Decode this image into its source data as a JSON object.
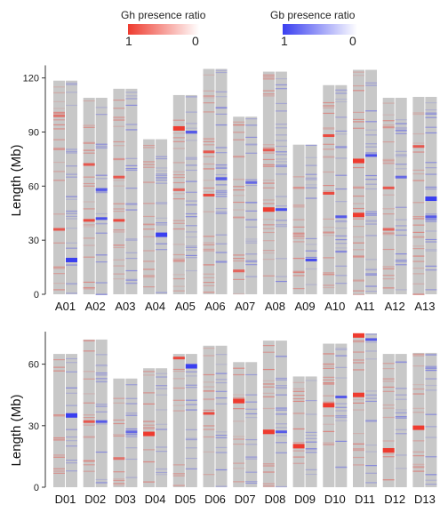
{
  "legend": {
    "gh_title": "Gh presence ratio",
    "gb_title": "Gb presence ratio",
    "gh_high": "1",
    "gh_low": "0",
    "gb_high": "1",
    "gb_low": "0",
    "gh_color": "#ee3b2f",
    "gb_color": "#3a3ff0",
    "background_color": "#c8c8c8"
  },
  "chart_data": [
    {
      "type": "heatmap",
      "ylabel": "Length (Mb)",
      "ylim": [
        0,
        126
      ],
      "yticks": [
        0,
        30,
        60,
        90,
        120
      ],
      "categories": [
        "A01",
        "A02",
        "A03",
        "A04",
        "A05",
        "A06",
        "A07",
        "A08",
        "A09",
        "A10",
        "A11",
        "A12",
        "A13"
      ],
      "values": [
        118.5,
        109,
        114,
        86,
        110.5,
        125,
        98.5,
        123.5,
        83,
        116,
        124.5,
        109,
        109.5
      ],
      "highlights": [
        {
          "chrom": "A01",
          "track": "Gh",
          "pos": 36,
          "ratio": 0.8
        },
        {
          "chrom": "A01",
          "track": "Gh",
          "pos": 99,
          "ratio": 0.6
        },
        {
          "chrom": "A01",
          "track": "Gb",
          "pos": 19,
          "ratio": 1.0
        },
        {
          "chrom": "A02",
          "track": "Gh",
          "pos": 41,
          "ratio": 0.9
        },
        {
          "chrom": "A02",
          "track": "Gh",
          "pos": 72,
          "ratio": 0.8
        },
        {
          "chrom": "A02",
          "track": "Gb",
          "pos": 42,
          "ratio": 0.9
        },
        {
          "chrom": "A02",
          "track": "Gb",
          "pos": 58,
          "ratio": 0.8
        },
        {
          "chrom": "A03",
          "track": "Gh",
          "pos": 41,
          "ratio": 0.9
        },
        {
          "chrom": "A03",
          "track": "Gh",
          "pos": 65,
          "ratio": 0.8
        },
        {
          "chrom": "A04",
          "track": "Gb",
          "pos": 33,
          "ratio": 1.0
        },
        {
          "chrom": "A05",
          "track": "Gh",
          "pos": 58,
          "ratio": 0.7
        },
        {
          "chrom": "A05",
          "track": "Gh",
          "pos": 92,
          "ratio": 1.0
        },
        {
          "chrom": "A05",
          "track": "Gb",
          "pos": 90,
          "ratio": 0.8
        },
        {
          "chrom": "A06",
          "track": "Gh",
          "pos": 55,
          "ratio": 0.9
        },
        {
          "chrom": "A06",
          "track": "Gh",
          "pos": 79,
          "ratio": 0.8
        },
        {
          "chrom": "A06",
          "track": "Gb",
          "pos": 64,
          "ratio": 0.8
        },
        {
          "chrom": "A07",
          "track": "Gh",
          "pos": 13,
          "ratio": 0.7
        },
        {
          "chrom": "A07",
          "track": "Gb",
          "pos": 62,
          "ratio": 0.7
        },
        {
          "chrom": "A08",
          "track": "Gh",
          "pos": 47,
          "ratio": 1.0
        },
        {
          "chrom": "A08",
          "track": "Gh",
          "pos": 80,
          "ratio": 0.8
        },
        {
          "chrom": "A08",
          "track": "Gb",
          "pos": 47,
          "ratio": 0.9
        },
        {
          "chrom": "A09",
          "track": "Gb",
          "pos": 19,
          "ratio": 0.9
        },
        {
          "chrom": "A10",
          "track": "Gh",
          "pos": 56,
          "ratio": 0.9
        },
        {
          "chrom": "A10",
          "track": "Gh",
          "pos": 88,
          "ratio": 0.9
        },
        {
          "chrom": "A10",
          "track": "Gb",
          "pos": 43,
          "ratio": 0.8
        },
        {
          "chrom": "A11",
          "track": "Gh",
          "pos": 44,
          "ratio": 1.0
        },
        {
          "chrom": "A11",
          "track": "Gh",
          "pos": 74,
          "ratio": 1.0
        },
        {
          "chrom": "A11",
          "track": "Gb",
          "pos": 77,
          "ratio": 0.9
        },
        {
          "chrom": "A12",
          "track": "Gh",
          "pos": 59,
          "ratio": 0.8
        },
        {
          "chrom": "A12",
          "track": "Gh",
          "pos": 36,
          "ratio": 0.7
        },
        {
          "chrom": "A12",
          "track": "Gb",
          "pos": 65,
          "ratio": 0.7
        },
        {
          "chrom": "A13",
          "track": "Gh",
          "pos": 82,
          "ratio": 0.8
        },
        {
          "chrom": "A13",
          "track": "Gb",
          "pos": 53,
          "ratio": 1.0
        },
        {
          "chrom": "A13",
          "track": "Gb",
          "pos": 43,
          "ratio": 0.8
        }
      ]
    },
    {
      "type": "heatmap",
      "ylabel": "Length (Mb)",
      "ylim": [
        0,
        75
      ],
      "yticks": [
        0,
        30,
        60
      ],
      "categories": [
        "D01",
        "D02",
        "D03",
        "D04",
        "D05",
        "D06",
        "D07",
        "D08",
        "D09",
        "D10",
        "D11",
        "D12",
        "D13"
      ],
      "values": [
        65,
        72,
        53,
        58,
        65,
        69,
        61,
        71.5,
        54,
        70,
        75,
        65,
        65.5
      ],
      "highlights": [
        {
          "chrom": "D01",
          "track": "Gb",
          "pos": 35,
          "ratio": 1.0
        },
        {
          "chrom": "D02",
          "track": "Gh",
          "pos": 32,
          "ratio": 0.8
        },
        {
          "chrom": "D02",
          "track": "Gb",
          "pos": 32,
          "ratio": 0.8
        },
        {
          "chrom": "D03",
          "track": "Gh",
          "pos": 14,
          "ratio": 0.6
        },
        {
          "chrom": "D03",
          "track": "Gb",
          "pos": 27,
          "ratio": 0.7
        },
        {
          "chrom": "D04",
          "track": "Gh",
          "pos": 26,
          "ratio": 1.0
        },
        {
          "chrom": "D05",
          "track": "Gh",
          "pos": 63,
          "ratio": 0.9
        },
        {
          "chrom": "D05",
          "track": "Gb",
          "pos": 59,
          "ratio": 1.0
        },
        {
          "chrom": "D06",
          "track": "Gh",
          "pos": 36,
          "ratio": 0.9
        },
        {
          "chrom": "D07",
          "track": "Gh",
          "pos": 42,
          "ratio": 1.0
        },
        {
          "chrom": "D08",
          "track": "Gh",
          "pos": 27,
          "ratio": 1.0
        },
        {
          "chrom": "D08",
          "track": "Gb",
          "pos": 27,
          "ratio": 0.8
        },
        {
          "chrom": "D09",
          "track": "Gh",
          "pos": 20,
          "ratio": 1.0
        },
        {
          "chrom": "D10",
          "track": "Gh",
          "pos": 40,
          "ratio": 1.0
        },
        {
          "chrom": "D10",
          "track": "Gb",
          "pos": 44,
          "ratio": 0.8
        },
        {
          "chrom": "D11",
          "track": "Gh",
          "pos": 45,
          "ratio": 1.0
        },
        {
          "chrom": "D11",
          "track": "Gh",
          "pos": 74,
          "ratio": 1.0
        },
        {
          "chrom": "D11",
          "track": "Gb",
          "pos": 72,
          "ratio": 0.8
        },
        {
          "chrom": "D12",
          "track": "Gh",
          "pos": 18,
          "ratio": 1.0
        },
        {
          "chrom": "D13",
          "track": "Gh",
          "pos": 29,
          "ratio": 1.0
        }
      ]
    }
  ]
}
